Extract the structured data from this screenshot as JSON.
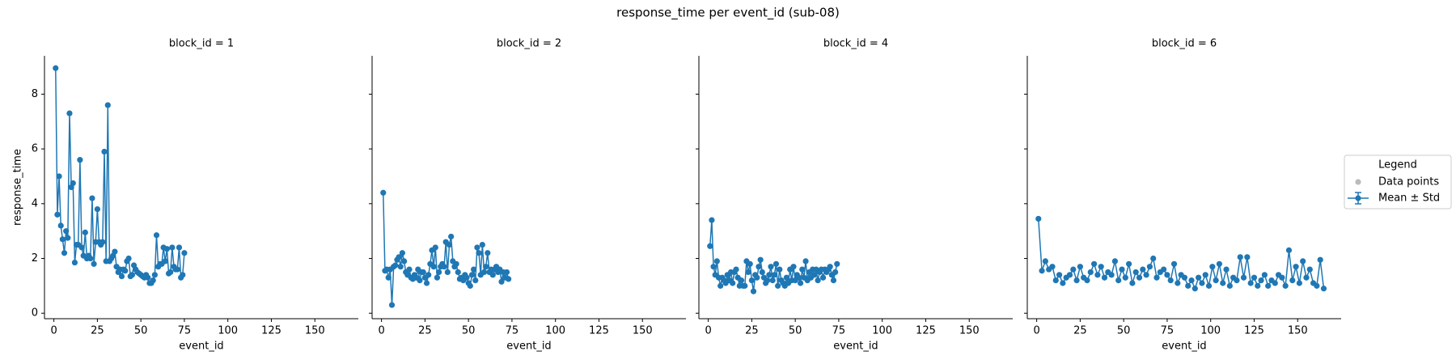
{
  "title": "response_time per event_id (sub-08)",
  "legend": {
    "title": "Legend",
    "entries": [
      {
        "name": "Data points",
        "color": "#bbbbbb"
      },
      {
        "name": "Mean ± Std",
        "color": "#1f77b4"
      }
    ]
  },
  "chart_data": [
    {
      "type": "line",
      "title": "block_id = 1",
      "x_label": "event_id",
      "y_label": "response_time",
      "color": "#1f77b4",
      "xlim": [
        -5.4,
        175
      ],
      "ylim": [
        -0.2,
        9.4
      ],
      "xticks": [
        0,
        25,
        50,
        75,
        100,
        125,
        150
      ],
      "yticks": [
        0,
        2,
        4,
        6,
        8
      ],
      "x": [
        1,
        2,
        3,
        4,
        5,
        6,
        7,
        8,
        9,
        10,
        11,
        12,
        13,
        14,
        15,
        16,
        17,
        18,
        19,
        20,
        21,
        22,
        23,
        24,
        25,
        26,
        27,
        28,
        29,
        30,
        31,
        32,
        33,
        34,
        35,
        36,
        37,
        38,
        39,
        40,
        41,
        42,
        43,
        44,
        45,
        46,
        47,
        48,
        49,
        50,
        51,
        52,
        53,
        54,
        55,
        56,
        57,
        58,
        59,
        60,
        61,
        62,
        63,
        64,
        65,
        66,
        67,
        68,
        69,
        70,
        71,
        72,
        73,
        74,
        75
      ],
      "values": [
        8.95,
        3.6,
        5.0,
        3.2,
        2.7,
        2.2,
        3.0,
        2.75,
        7.3,
        4.6,
        4.75,
        1.85,
        2.5,
        2.5,
        5.6,
        2.4,
        2.1,
        2.95,
        2.0,
        2.1,
        2.0,
        4.2,
        1.8,
        2.6,
        3.8,
        2.6,
        2.5,
        2.6,
        5.9,
        1.9,
        7.6,
        1.9,
        2.0,
        2.1,
        2.25,
        1.7,
        1.5,
        1.6,
        1.35,
        1.6,
        1.55,
        1.9,
        2.0,
        1.35,
        1.4,
        1.75,
        1.6,
        1.5,
        1.45,
        1.4,
        1.35,
        1.3,
        1.4,
        1.3,
        1.1,
        1.1,
        1.2,
        1.4,
        2.85,
        1.7,
        1.8,
        1.8,
        2.4,
        1.9,
        2.35,
        1.45,
        1.5,
        2.4,
        1.7,
        1.6,
        1.6,
        2.4,
        1.3,
        1.4,
        2.2
      ]
    },
    {
      "type": "line",
      "title": "block_id = 2",
      "x_label": "event_id",
      "color": "#1f77b4",
      "xlim": [
        -5.4,
        175
      ],
      "ylim": [
        -0.2,
        9.4
      ],
      "xticks": [
        0,
        25,
        50,
        75,
        100,
        125,
        150
      ],
      "yticks": [
        0,
        2,
        4,
        6,
        8
      ],
      "x": [
        1,
        2,
        3,
        4,
        5,
        6,
        7,
        8,
        9,
        10,
        11,
        12,
        13,
        14,
        15,
        16,
        17,
        18,
        19,
        20,
        21,
        22,
        23,
        24,
        25,
        26,
        27,
        28,
        29,
        30,
        31,
        32,
        33,
        34,
        35,
        36,
        37,
        38,
        39,
        40,
        41,
        42,
        43,
        44,
        45,
        46,
        47,
        48,
        49,
        50,
        51,
        52,
        53,
        54,
        55,
        56,
        57,
        58,
        59,
        60,
        61,
        62,
        63,
        64,
        65,
        66,
        67,
        68,
        69,
        70,
        71,
        72,
        73
      ],
      "values": [
        4.4,
        1.55,
        1.6,
        1.3,
        1.6,
        0.3,
        1.7,
        1.75,
        1.95,
        2.05,
        1.7,
        2.2,
        1.9,
        1.5,
        1.4,
        1.6,
        1.3,
        1.25,
        1.4,
        1.3,
        1.6,
        1.2,
        1.5,
        1.5,
        1.3,
        1.1,
        1.4,
        1.8,
        2.3,
        1.7,
        2.4,
        1.3,
        1.5,
        1.7,
        1.8,
        1.7,
        2.6,
        1.5,
        2.5,
        2.8,
        1.9,
        1.7,
        1.8,
        1.5,
        1.25,
        1.3,
        1.2,
        1.4,
        1.3,
        1.1,
        1.0,
        1.4,
        1.6,
        1.2,
        2.4,
        2.2,
        1.4,
        2.5,
        1.5,
        1.7,
        2.2,
        1.5,
        1.6,
        1.4,
        1.6,
        1.7,
        1.5,
        1.6,
        1.15,
        1.5,
        1.3,
        1.5,
        1.25
      ]
    },
    {
      "type": "line",
      "title": "block_id = 4",
      "x_label": "event_id",
      "color": "#1f77b4",
      "xlim": [
        -5.4,
        175
      ],
      "ylim": [
        -0.2,
        9.4
      ],
      "xticks": [
        0,
        25,
        50,
        75,
        100,
        125,
        150
      ],
      "yticks": [
        0,
        2,
        4,
        6,
        8
      ],
      "x": [
        1,
        2,
        3,
        4,
        5,
        6,
        7,
        8,
        9,
        10,
        11,
        12,
        13,
        14,
        15,
        16,
        17,
        18,
        19,
        20,
        21,
        22,
        23,
        24,
        25,
        26,
        27,
        28,
        29,
        30,
        31,
        32,
        33,
        34,
        35,
        36,
        37,
        38,
        39,
        40,
        41,
        42,
        43,
        44,
        45,
        46,
        47,
        48,
        49,
        50,
        51,
        52,
        53,
        54,
        55,
        56,
        57,
        58,
        59,
        60,
        61,
        62,
        63,
        64,
        65,
        66,
        67,
        68,
        69,
        70,
        71,
        72,
        73,
        74
      ],
      "values": [
        2.45,
        3.4,
        1.7,
        1.4,
        1.9,
        1.3,
        1.0,
        1.3,
        1.2,
        1.1,
        1.4,
        1.2,
        1.5,
        1.1,
        1.5,
        1.6,
        1.3,
        1.0,
        1.2,
        1.0,
        1.0,
        1.9,
        1.5,
        1.8,
        1.2,
        0.8,
        1.4,
        1.3,
        1.7,
        1.95,
        1.5,
        1.3,
        1.1,
        1.2,
        1.4,
        1.7,
        1.2,
        1.4,
        1.8,
        1.0,
        1.6,
        1.2,
        1.1,
        1.0,
        1.3,
        1.1,
        1.6,
        1.2,
        1.7,
        1.2,
        1.4,
        1.3,
        1.1,
        1.6,
        1.3,
        1.9,
        1.2,
        1.5,
        1.3,
        1.6,
        1.4,
        1.6,
        1.2,
        1.5,
        1.6,
        1.3,
        1.6,
        1.5,
        1.6,
        1.7,
        1.4,
        1.2,
        1.5,
        1.8
      ]
    },
    {
      "type": "line",
      "title": "block_id = 6",
      "x_label": "event_id",
      "color": "#1f77b4",
      "xlim": [
        -5.4,
        175
      ],
      "ylim": [
        -0.2,
        9.4
      ],
      "xticks": [
        0,
        25,
        50,
        75,
        100,
        125,
        150
      ],
      "yticks": [
        0,
        2,
        4,
        6,
        8
      ],
      "x": [
        1,
        3,
        5,
        7,
        9,
        11,
        13,
        15,
        17,
        19,
        21,
        23,
        25,
        27,
        29,
        31,
        33,
        35,
        37,
        39,
        41,
        43,
        45,
        47,
        49,
        51,
        53,
        55,
        57,
        59,
        61,
        63,
        65,
        67,
        69,
        71,
        73,
        75,
        77,
        79,
        81,
        83,
        85,
        87,
        89,
        91,
        93,
        95,
        97,
        99,
        101,
        103,
        105,
        107,
        109,
        111,
        113,
        115,
        117,
        119,
        121,
        123,
        125,
        127,
        129,
        131,
        133,
        135,
        137,
        139,
        141,
        143,
        145,
        147,
        149,
        151,
        153,
        155,
        157,
        159,
        161,
        163,
        165
      ],
      "values": [
        3.45,
        1.55,
        1.9,
        1.6,
        1.7,
        1.2,
        1.4,
        1.1,
        1.3,
        1.4,
        1.6,
        1.2,
        1.7,
        1.3,
        1.2,
        1.5,
        1.8,
        1.4,
        1.7,
        1.3,
        1.5,
        1.4,
        1.9,
        1.2,
        1.6,
        1.3,
        1.8,
        1.1,
        1.5,
        1.3,
        1.6,
        1.4,
        1.7,
        2.0,
        1.3,
        1.5,
        1.6,
        1.4,
        1.2,
        1.8,
        1.1,
        1.4,
        1.3,
        1.0,
        1.2,
        0.9,
        1.3,
        1.1,
        1.4,
        1.0,
        1.7,
        1.2,
        1.8,
        1.1,
        1.6,
        1.0,
        1.3,
        1.2,
        2.05,
        1.3,
        2.05,
        1.1,
        1.3,
        1.0,
        1.2,
        1.4,
        1.0,
        1.2,
        1.1,
        1.4,
        1.3,
        1.0,
        2.3,
        1.2,
        1.7,
        1.1,
        1.9,
        1.3,
        1.6,
        1.1,
        1.0,
        1.95,
        0.9
      ]
    }
  ]
}
